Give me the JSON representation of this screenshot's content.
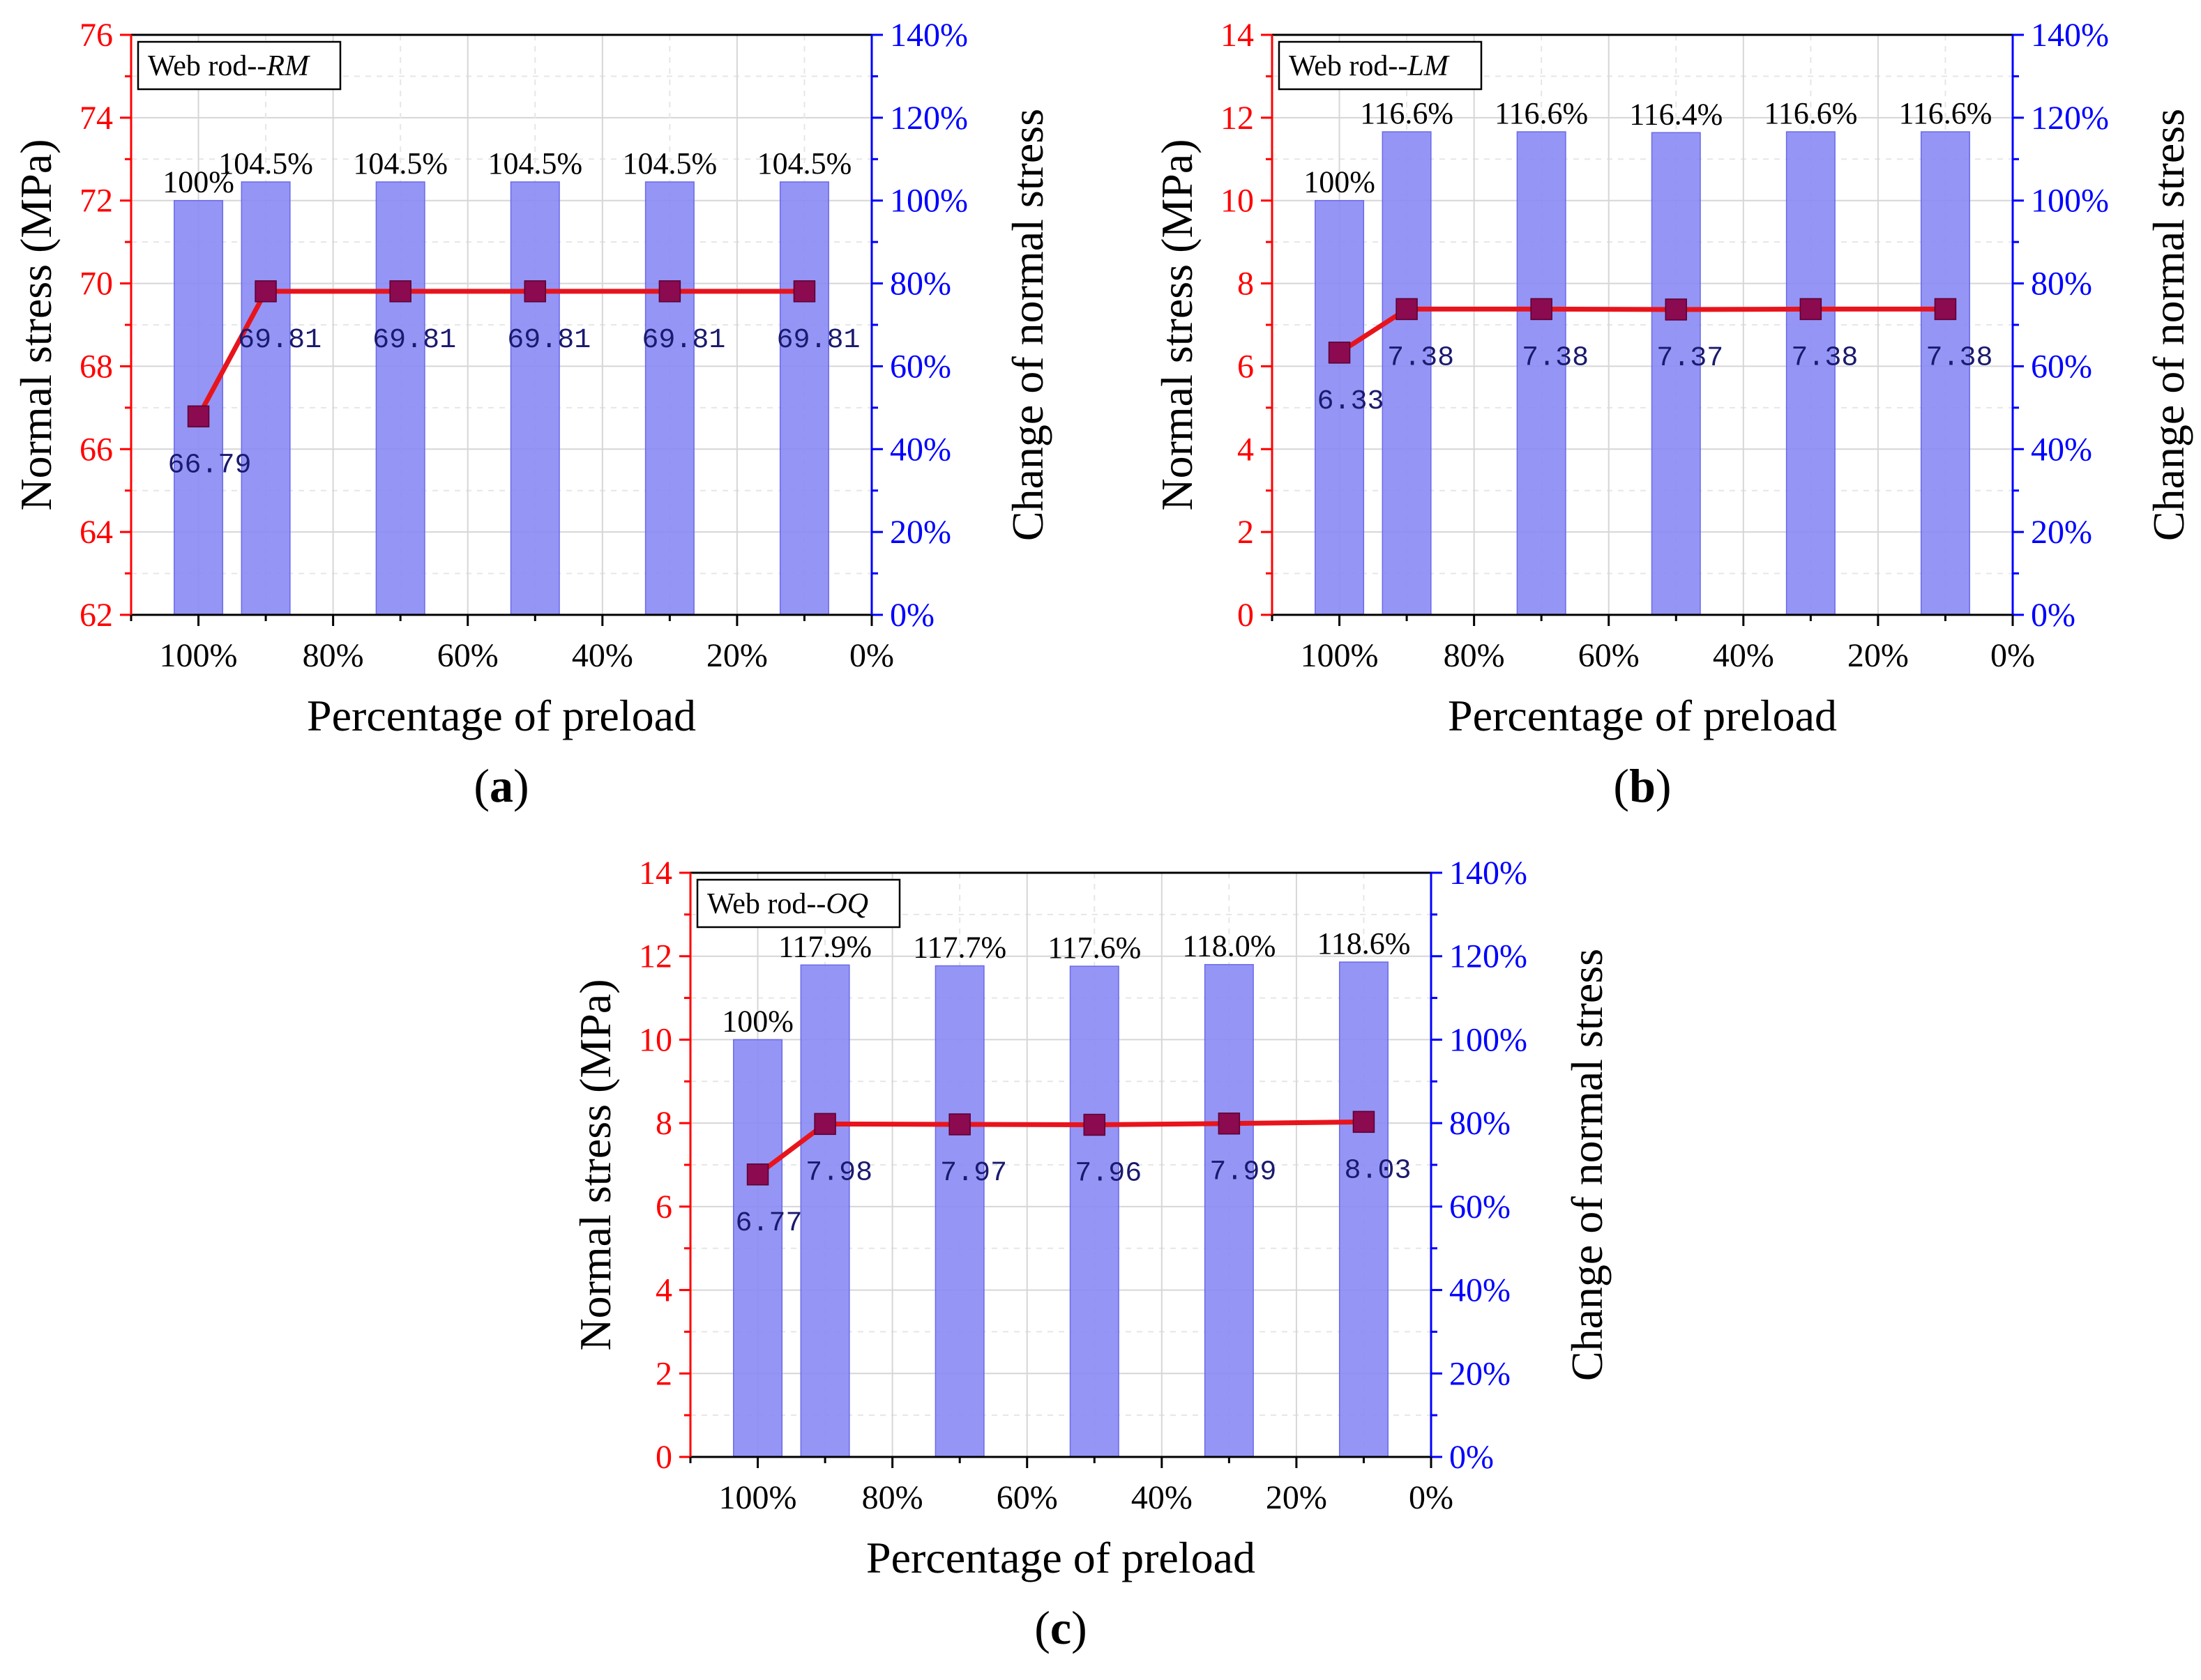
{
  "chart_data": [
    {
      "type": "bar+line",
      "panel": "(a)",
      "title": "Web rod--",
      "title_italic": "RM",
      "xlabel": "Percentage of preload",
      "ylabel_left": "Normal stress (MPa)",
      "ylabel_right": "Change of normal stress",
      "x_ticks": [
        "100%",
        "80%",
        "60%",
        "40%",
        "20%",
        "0%"
      ],
      "y_left_ticks": [
        "62",
        "64",
        "66",
        "68",
        "70",
        "72",
        "74",
        "76"
      ],
      "y_right_ticks": [
        "0%",
        "20%",
        "40%",
        "60%",
        "80%",
        "100%",
        "120%",
        "140%"
      ],
      "x_range": [
        110,
        0
      ],
      "y_left_range": [
        62,
        76
      ],
      "y_right_range": [
        0,
        140
      ],
      "x": [
        100,
        90,
        70,
        50,
        30,
        10
      ],
      "bars": {
        "values": [
          100,
          104.5,
          104.5,
          104.5,
          104.5,
          104.5
        ],
        "labels": [
          "100%",
          "104.5%",
          "104.5%",
          "104.5%",
          "104.5%",
          "104.5%"
        ]
      },
      "line": {
        "values": [
          66.79,
          69.81,
          69.81,
          69.81,
          69.81,
          69.81
        ],
        "labels": [
          "66.79",
          "69.81",
          "69.81",
          "69.81",
          "69.81",
          "69.81"
        ]
      },
      "grid": true,
      "colors": {
        "bar": "#8a8af5",
        "line": "#e8141c",
        "marker": "#8b0a50",
        "left_axis": "#ff0000",
        "right_axis": "#0000ff"
      }
    },
    {
      "type": "bar+line",
      "panel": "(b)",
      "title": "Web rod--",
      "title_italic": "LM",
      "xlabel": "Percentage of preload",
      "ylabel_left": "Normal stress (MPa)",
      "ylabel_right": "Change of normal stress",
      "x_ticks": [
        "100%",
        "80%",
        "60%",
        "40%",
        "20%",
        "0%"
      ],
      "y_left_ticks": [
        "0",
        "2",
        "4",
        "6",
        "8",
        "10",
        "12",
        "14"
      ],
      "y_right_ticks": [
        "0%",
        "20%",
        "40%",
        "60%",
        "80%",
        "100%",
        "120%",
        "140%"
      ],
      "x_range": [
        110,
        0
      ],
      "y_left_range": [
        0,
        14
      ],
      "y_right_range": [
        0,
        140
      ],
      "x": [
        100,
        90,
        70,
        50,
        30,
        10
      ],
      "bars": {
        "values": [
          100,
          116.6,
          116.6,
          116.4,
          116.6,
          116.6
        ],
        "labels": [
          "100%",
          "116.6%",
          "116.6%",
          "116.4%",
          "116.6%",
          "116.6%"
        ]
      },
      "line": {
        "values": [
          6.33,
          7.38,
          7.38,
          7.37,
          7.38,
          7.38
        ],
        "labels": [
          "6.33",
          "7.38",
          "7.38",
          "7.37",
          "7.38",
          "7.38"
        ]
      },
      "grid": true,
      "colors": {
        "bar": "#8a8af5",
        "line": "#e8141c",
        "marker": "#8b0a50",
        "left_axis": "#ff0000",
        "right_axis": "#0000ff"
      }
    },
    {
      "type": "bar+line",
      "panel": "(c)",
      "title": "Web rod--",
      "title_italic": "OQ",
      "xlabel": "Percentage of preload",
      "ylabel_left": "Normal stress (MPa)",
      "ylabel_right": "Change of normal stress",
      "x_ticks": [
        "100%",
        "80%",
        "60%",
        "40%",
        "20%",
        "0%"
      ],
      "y_left_ticks": [
        "0",
        "2",
        "4",
        "6",
        "8",
        "10",
        "12",
        "14"
      ],
      "y_right_ticks": [
        "0%",
        "20%",
        "40%",
        "60%",
        "80%",
        "100%",
        "120%",
        "140%"
      ],
      "x_range": [
        110,
        0
      ],
      "y_left_range": [
        0,
        14
      ],
      "y_right_range": [
        0,
        140
      ],
      "x": [
        100,
        90,
        70,
        50,
        30,
        10
      ],
      "bars": {
        "values": [
          100,
          117.9,
          117.7,
          117.6,
          118.0,
          118.6
        ],
        "labels": [
          "100%",
          "117.9%",
          "117.7%",
          "117.6%",
          "118.0%",
          "118.6%"
        ]
      },
      "line": {
        "values": [
          6.77,
          7.98,
          7.97,
          7.96,
          7.99,
          8.03
        ],
        "labels": [
          "6.77",
          "7.98",
          "7.97",
          "7.96",
          "7.99",
          "8.03"
        ]
      },
      "grid": true,
      "colors": {
        "bar": "#8a8af5",
        "line": "#e8141c",
        "marker": "#8b0a50",
        "left_axis": "#ff0000",
        "right_axis": "#0000ff"
      }
    }
  ]
}
